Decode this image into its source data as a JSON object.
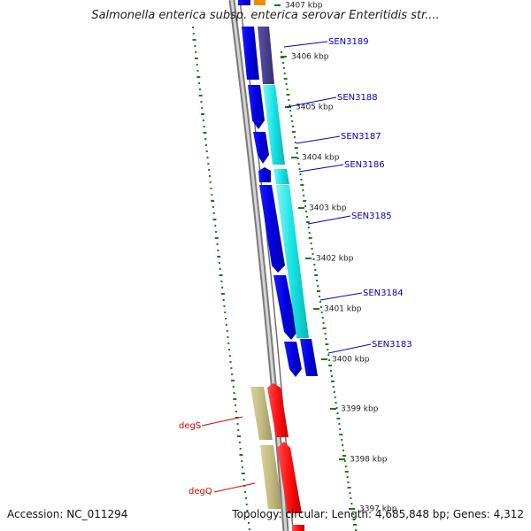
{
  "title": "Salmonella enterica subsp. enterica serovar Enteritidis str....",
  "footer": {
    "accession": "Accession: NC_011294",
    "summary": "Topology: circular; Length: 4,685,848 bp; Genes: 4,312"
  },
  "ruler_ticks": [
    "3407 kbp",
    "3406 kbp",
    "3405 kbp",
    "3404 kbp",
    "3403 kbp",
    "3402 kbp",
    "3401 kbp",
    "3400 kbp",
    "3399 kbp",
    "3398 kbp",
    "3397 kbp"
  ],
  "gene_labels": [
    {
      "name": "SEN3189",
      "color": "#0000cc"
    },
    {
      "name": "SEN3188",
      "color": "#0000cc"
    },
    {
      "name": "SEN3187",
      "color": "#0000cc"
    },
    {
      "name": "SEN3186",
      "color": "#0000cc"
    },
    {
      "name": "SEN3185",
      "color": "#0000cc"
    },
    {
      "name": "SEN3184",
      "color": "#0000cc"
    },
    {
      "name": "SEN3183",
      "color": "#0000cc"
    },
    {
      "name": "degS",
      "color": "#dd0000"
    },
    {
      "name": "degQ",
      "color": "#dd0000"
    }
  ],
  "colors": {
    "cds": "#0000e6",
    "cds_light": "#3b3bff",
    "purple": "#4a3f8f",
    "cyan": "#1de6e6",
    "red": "#ff1a1a",
    "olive": "#c2bb82",
    "orange": "#f08c00",
    "backbone": "#888888",
    "dots": "#1a7a1a"
  }
}
